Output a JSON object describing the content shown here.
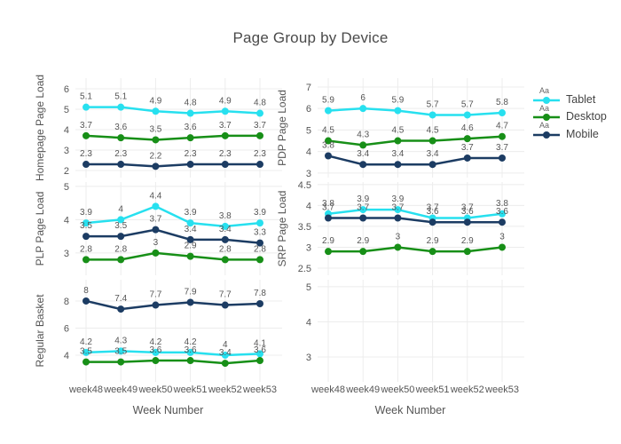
{
  "chart_data": {
    "type": "line",
    "title": "Page Group by Device",
    "x_axis_title": "Week Number",
    "categories": [
      "week48",
      "week49",
      "week50",
      "week51",
      "week52",
      "week53"
    ],
    "legend_position": "right",
    "legend_sample_text": "Aa",
    "legend": [
      {
        "name": "Tablet",
        "color": "#27e0ef"
      },
      {
        "name": "Desktop",
        "color": "#178f17"
      },
      {
        "name": "Mobile",
        "color": "#1c3c63"
      }
    ],
    "grid": true,
    "grid_color": "#ececec",
    "tick_color": "#555555",
    "label_color": "#555555",
    "title_color": "#4a4a4a",
    "subplots": [
      {
        "ylabel": "Homepage Page Load",
        "row": 0,
        "col": 0,
        "yticks": [
          6,
          5,
          4,
          3,
          2
        ],
        "y_range": [
          1.65,
          6.52
        ],
        "series": [
          {
            "name": "Tablet",
            "values": [
              5.1,
              5.1,
              4.9,
              4.8,
              4.9,
              4.8
            ]
          },
          {
            "name": "Desktop",
            "values": [
              3.7,
              3.6,
              3.5,
              3.6,
              3.7,
              3.7
            ]
          },
          {
            "name": "Mobile",
            "values": [
              2.3,
              2.3,
              2.2,
              2.3,
              2.3,
              2.3
            ]
          }
        ]
      },
      {
        "ylabel": "PDP Page Load",
        "row": 0,
        "col": 1,
        "yticks": [
          7,
          6,
          5,
          4,
          3
        ],
        "y_range": [
          2.79,
          7.41
        ],
        "series": [
          {
            "name": "Tablet",
            "values": [
              5.9,
              6,
              5.9,
              5.7,
              5.7,
              5.8
            ]
          },
          {
            "name": "Desktop",
            "values": [
              4.5,
              4.3,
              4.5,
              4.5,
              4.6,
              4.7
            ]
          },
          {
            "name": "Mobile",
            "values": [
              3.8,
              3.4,
              3.4,
              3.4,
              3.7,
              3.7
            ]
          }
        ]
      },
      {
        "ylabel": "PLP Page Load",
        "row": 1,
        "col": 0,
        "yticks": [
          5,
          4,
          3
        ],
        "y_range": [
          2.33,
          5.13
        ],
        "series": [
          {
            "name": "Tablet",
            "values": [
              3.9,
              4,
              4.4,
              3.9,
              3.8,
              3.9
            ]
          },
          {
            "name": "Desktop",
            "values": [
              2.8,
              2.8,
              3,
              2.9,
              2.8,
              2.8
            ]
          },
          {
            "name": "Mobile",
            "values": [
              3.5,
              3.5,
              3.7,
              3.4,
              3.4,
              3.3
            ]
          }
        ]
      },
      {
        "ylabel": "SRP Page Load",
        "row": 1,
        "col": 1,
        "yticks": [
          4.5,
          4,
          3.5,
          3,
          2.5
        ],
        "y_range": [
          2.33,
          4.56
        ],
        "series": [
          {
            "name": "Tablet",
            "values": [
              3.8,
              3.9,
              3.9,
              3.7,
              3.7,
              3.8
            ]
          },
          {
            "name": "Desktop",
            "values": [
              2.9,
              2.9,
              3,
              2.9,
              2.9,
              3
            ]
          },
          {
            "name": "Mobile",
            "values": [
              3.7,
              3.7,
              3.7,
              3.6,
              3.6,
              3.6
            ]
          }
        ]
      },
      {
        "ylabel": "Regular Basket",
        "row": 2,
        "col": 0,
        "yticks": [
          8,
          6,
          4
        ],
        "y_range": [
          2.03,
          9.57
        ],
        "series": [
          {
            "name": "Tablet",
            "values": [
              4.2,
              4.3,
              4.2,
              4.2,
              4,
              4.1
            ]
          },
          {
            "name": "Desktop",
            "values": [
              3.5,
              3.5,
              3.6,
              3.6,
              3.4,
              3.6
            ]
          },
          {
            "name": "Mobile",
            "values": [
              8,
              7.4,
              7.7,
              7.9,
              7.7,
              7.8
            ]
          }
        ]
      },
      {
        "ylabel": "",
        "row": 2,
        "col": 1,
        "yticks": [
          5,
          4,
          3
        ],
        "y_range": [
          2.29,
          5.2
        ],
        "series": []
      }
    ]
  }
}
